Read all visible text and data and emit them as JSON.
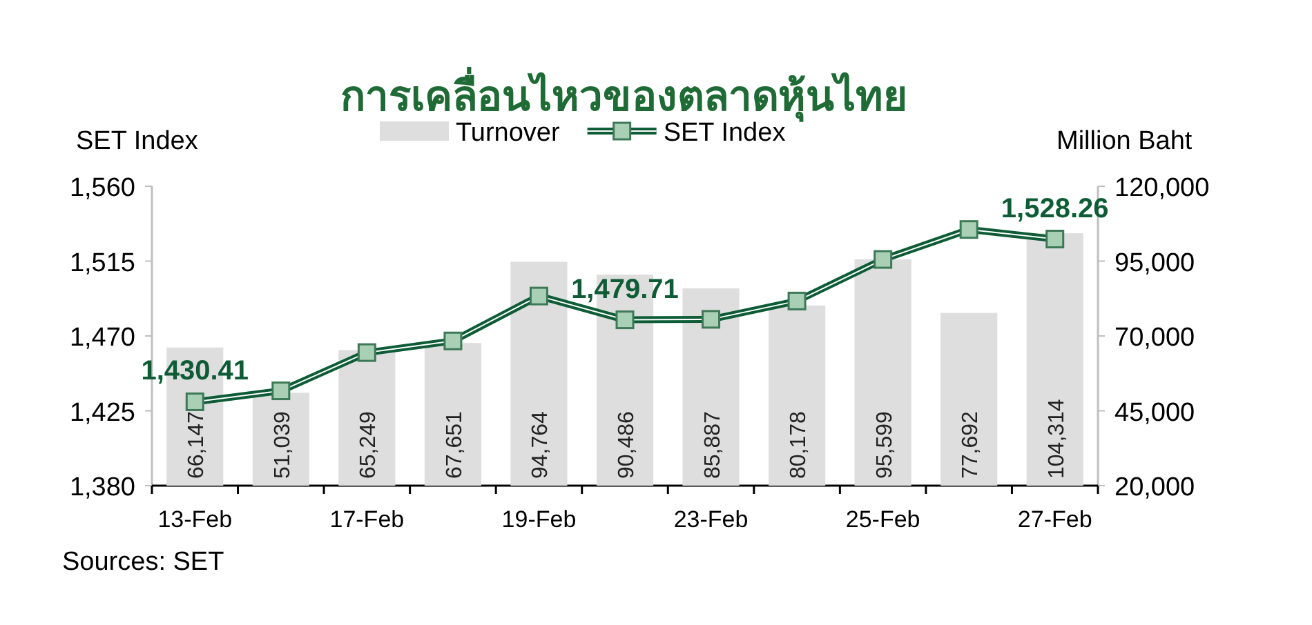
{
  "chart_data": {
    "type": "bar",
    "title": "การเคลื่อนไหวของตลาดหุ้นไทย",
    "ylabel": "SET Index",
    "y2label": "Million Baht",
    "legend": "top",
    "categories": [
      "13-Feb",
      null,
      "17-Feb",
      null,
      "19-Feb",
      null,
      "23-Feb",
      null,
      "25-Feb",
      null,
      "27-Feb"
    ],
    "ylim": [
      1380,
      1560
    ],
    "yticks": [
      {
        "value": 1380,
        "label": "1,380"
      },
      {
        "value": 1425,
        "label": "1,425"
      },
      {
        "value": 1470,
        "label": "1,470"
      },
      {
        "value": 1515,
        "label": "1,515"
      },
      {
        "value": 1560,
        "label": "1,560"
      }
    ],
    "y2lim": [
      20000,
      120000
    ],
    "y2ticks": [
      {
        "value": 20000,
        "label": "20,000"
      },
      {
        "value": 45000,
        "label": "45,000"
      },
      {
        "value": 70000,
        "label": "70,000"
      },
      {
        "value": 95000,
        "label": "95,000"
      },
      {
        "value": 120000,
        "label": "120,000"
      }
    ],
    "series": [
      {
        "name": "Turnover",
        "axis": "y2",
        "color": "#dedede",
        "values": [
          66147,
          51039,
          65249,
          67651,
          94764,
          90486,
          85887,
          80178,
          95599,
          77692,
          104314
        ],
        "value_labels": [
          "66,147",
          "51,039",
          "65,249",
          "67,651",
          "94,764",
          "90,486",
          "85,887",
          "80,178",
          "95,599",
          "77,692",
          "104,314"
        ]
      },
      {
        "name": "SET Index",
        "type": "line",
        "color": "#0d5c36",
        "marker": "square",
        "values": [
          1430.41,
          1437,
          1460,
          1467,
          1494,
          1479.71,
          1480,
          1491,
          1516,
          1534,
          1528.26
        ],
        "value_labels": [
          "1,430.41",
          null,
          null,
          null,
          null,
          "1,479.71",
          null,
          null,
          null,
          null,
          "1,528.26"
        ]
      }
    ],
    "annotations": [
      "Sources: SET"
    ]
  }
}
